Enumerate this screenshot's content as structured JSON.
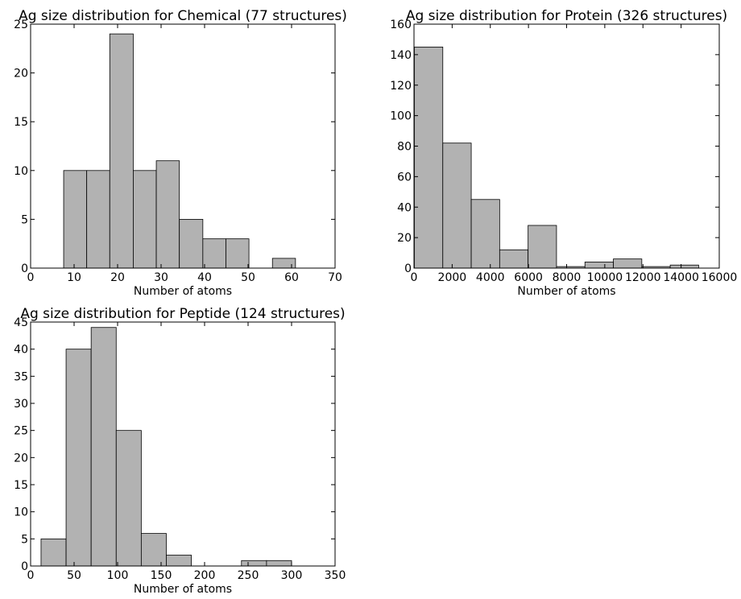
{
  "chart_data": [
    {
      "type": "histogram",
      "title": "Ag size distribution for Chemical (77 structures)",
      "x_label": "Number of atoms",
      "color": "#b2b2b2",
      "bins": [
        7.6,
        12.9,
        18.2,
        23.6,
        28.9,
        34.2,
        39.6,
        44.9,
        50.2,
        55.6,
        60.9
      ],
      "values": [
        10,
        10,
        24,
        10,
        11,
        5,
        3,
        3,
        0,
        1
      ],
      "xlim": [
        0,
        70
      ],
      "xticks": [
        0,
        10,
        20,
        30,
        40,
        50,
        60,
        70
      ],
      "ylim": [
        0,
        25
      ],
      "yticks": [
        0,
        5,
        10,
        15,
        20,
        25
      ]
    },
    {
      "type": "histogram",
      "title": "Ag size distribution for Protein (326 structures)",
      "x_label": "Number of atoms",
      "color": "#b2b2b2",
      "bins": [
        20,
        1510,
        3000,
        4490,
        5980,
        7470,
        8960,
        10450,
        11940,
        13430,
        14920
      ],
      "values": [
        145,
        82,
        45,
        12,
        28,
        1,
        4,
        6,
        1,
        2
      ],
      "xlim": [
        0,
        16000
      ],
      "xticks": [
        0,
        2000,
        4000,
        6000,
        8000,
        10000,
        12000,
        14000,
        16000
      ],
      "ylim": [
        0,
        160
      ],
      "yticks": [
        0,
        20,
        40,
        60,
        80,
        100,
        120,
        140,
        160
      ]
    },
    {
      "type": "histogram",
      "title": "Ag size distribution for Peptide (124 structures)",
      "x_label": "Number of atoms",
      "color": "#b2b2b2",
      "bins": [
        12,
        40.8,
        69.6,
        98.4,
        127.2,
        156,
        184.8,
        213.6,
        242.4,
        271.2,
        300
      ],
      "values": [
        5,
        40,
        44,
        25,
        6,
        2,
        0,
        0,
        1,
        1
      ],
      "xlim": [
        0,
        350
      ],
      "xticks": [
        0,
        50,
        100,
        150,
        200,
        250,
        300,
        350
      ],
      "ylim": [
        0,
        45
      ],
      "yticks": [
        0,
        5,
        10,
        15,
        20,
        25,
        30,
        35,
        40,
        45
      ]
    }
  ]
}
